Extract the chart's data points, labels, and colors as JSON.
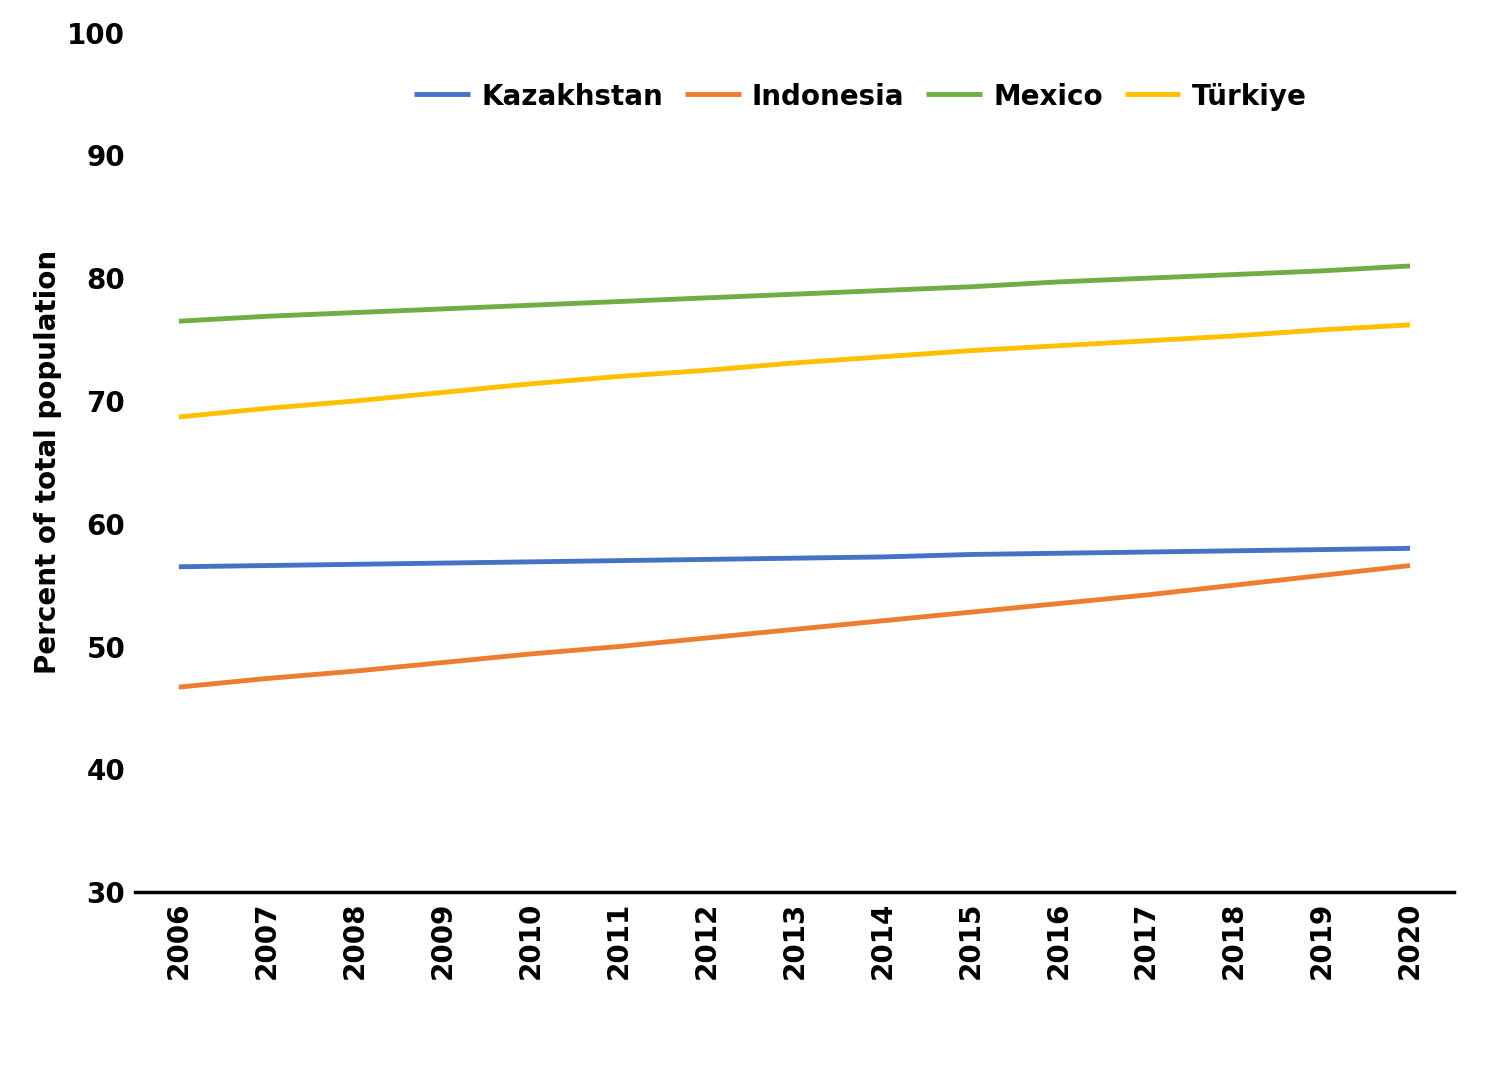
{
  "years": [
    2006,
    2007,
    2008,
    2009,
    2010,
    2011,
    2012,
    2013,
    2014,
    2015,
    2016,
    2017,
    2018,
    2019,
    2020
  ],
  "series": {
    "Kazakhstan": {
      "values": [
        56.5,
        56.6,
        56.7,
        56.8,
        56.9,
        57.0,
        57.1,
        57.2,
        57.3,
        57.5,
        57.6,
        57.7,
        57.8,
        57.9,
        58.0
      ],
      "color": "#4472C4",
      "linewidth": 3.5
    },
    "Indonesia": {
      "values": [
        46.7,
        47.4,
        48.0,
        48.7,
        49.4,
        50.0,
        50.7,
        51.4,
        52.1,
        52.8,
        53.5,
        54.2,
        55.0,
        55.8,
        56.6
      ],
      "color": "#ED7D31",
      "linewidth": 3.5
    },
    "Mexico": {
      "values": [
        76.5,
        76.9,
        77.2,
        77.5,
        77.8,
        78.1,
        78.4,
        78.7,
        79.0,
        79.3,
        79.7,
        80.0,
        80.3,
        80.6,
        81.0
      ],
      "color": "#70AD47",
      "linewidth": 3.5
    },
    "Türkiye": {
      "values": [
        68.7,
        69.4,
        70.0,
        70.7,
        71.4,
        72.0,
        72.5,
        73.1,
        73.6,
        74.1,
        74.5,
        74.9,
        75.3,
        75.8,
        76.2
      ],
      "color": "#FFC000",
      "linewidth": 3.5
    }
  },
  "ylabel": "Percent of total population",
  "ylim": [
    30,
    100
  ],
  "yticks": [
    30,
    40,
    50,
    60,
    70,
    80,
    90,
    100
  ],
  "xlim": [
    2005.5,
    2020.5
  ],
  "legend_order": [
    "Kazakhstan",
    "Indonesia",
    "Mexico",
    "Türkiye"
  ],
  "background_color": "#ffffff",
  "tick_fontsize": 20,
  "ylabel_fontsize": 20,
  "legend_fontsize": 20
}
